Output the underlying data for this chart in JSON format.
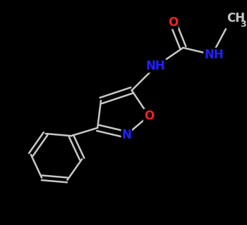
{
  "background_color": "#000000",
  "bond_color": "#c8c8c8",
  "bond_width": 1.8,
  "atom_colors": {
    "O": "#ff2020",
    "N": "#2020ff",
    "C": "#c8c8c8"
  },
  "font_size_atom": 12,
  "font_size_sub": 9,
  "figsize": [
    3.5,
    3.2
  ],
  "dpi": 100,
  "xlim": [
    0,
    7
  ],
  "ylim": [
    0,
    6.4
  ]
}
